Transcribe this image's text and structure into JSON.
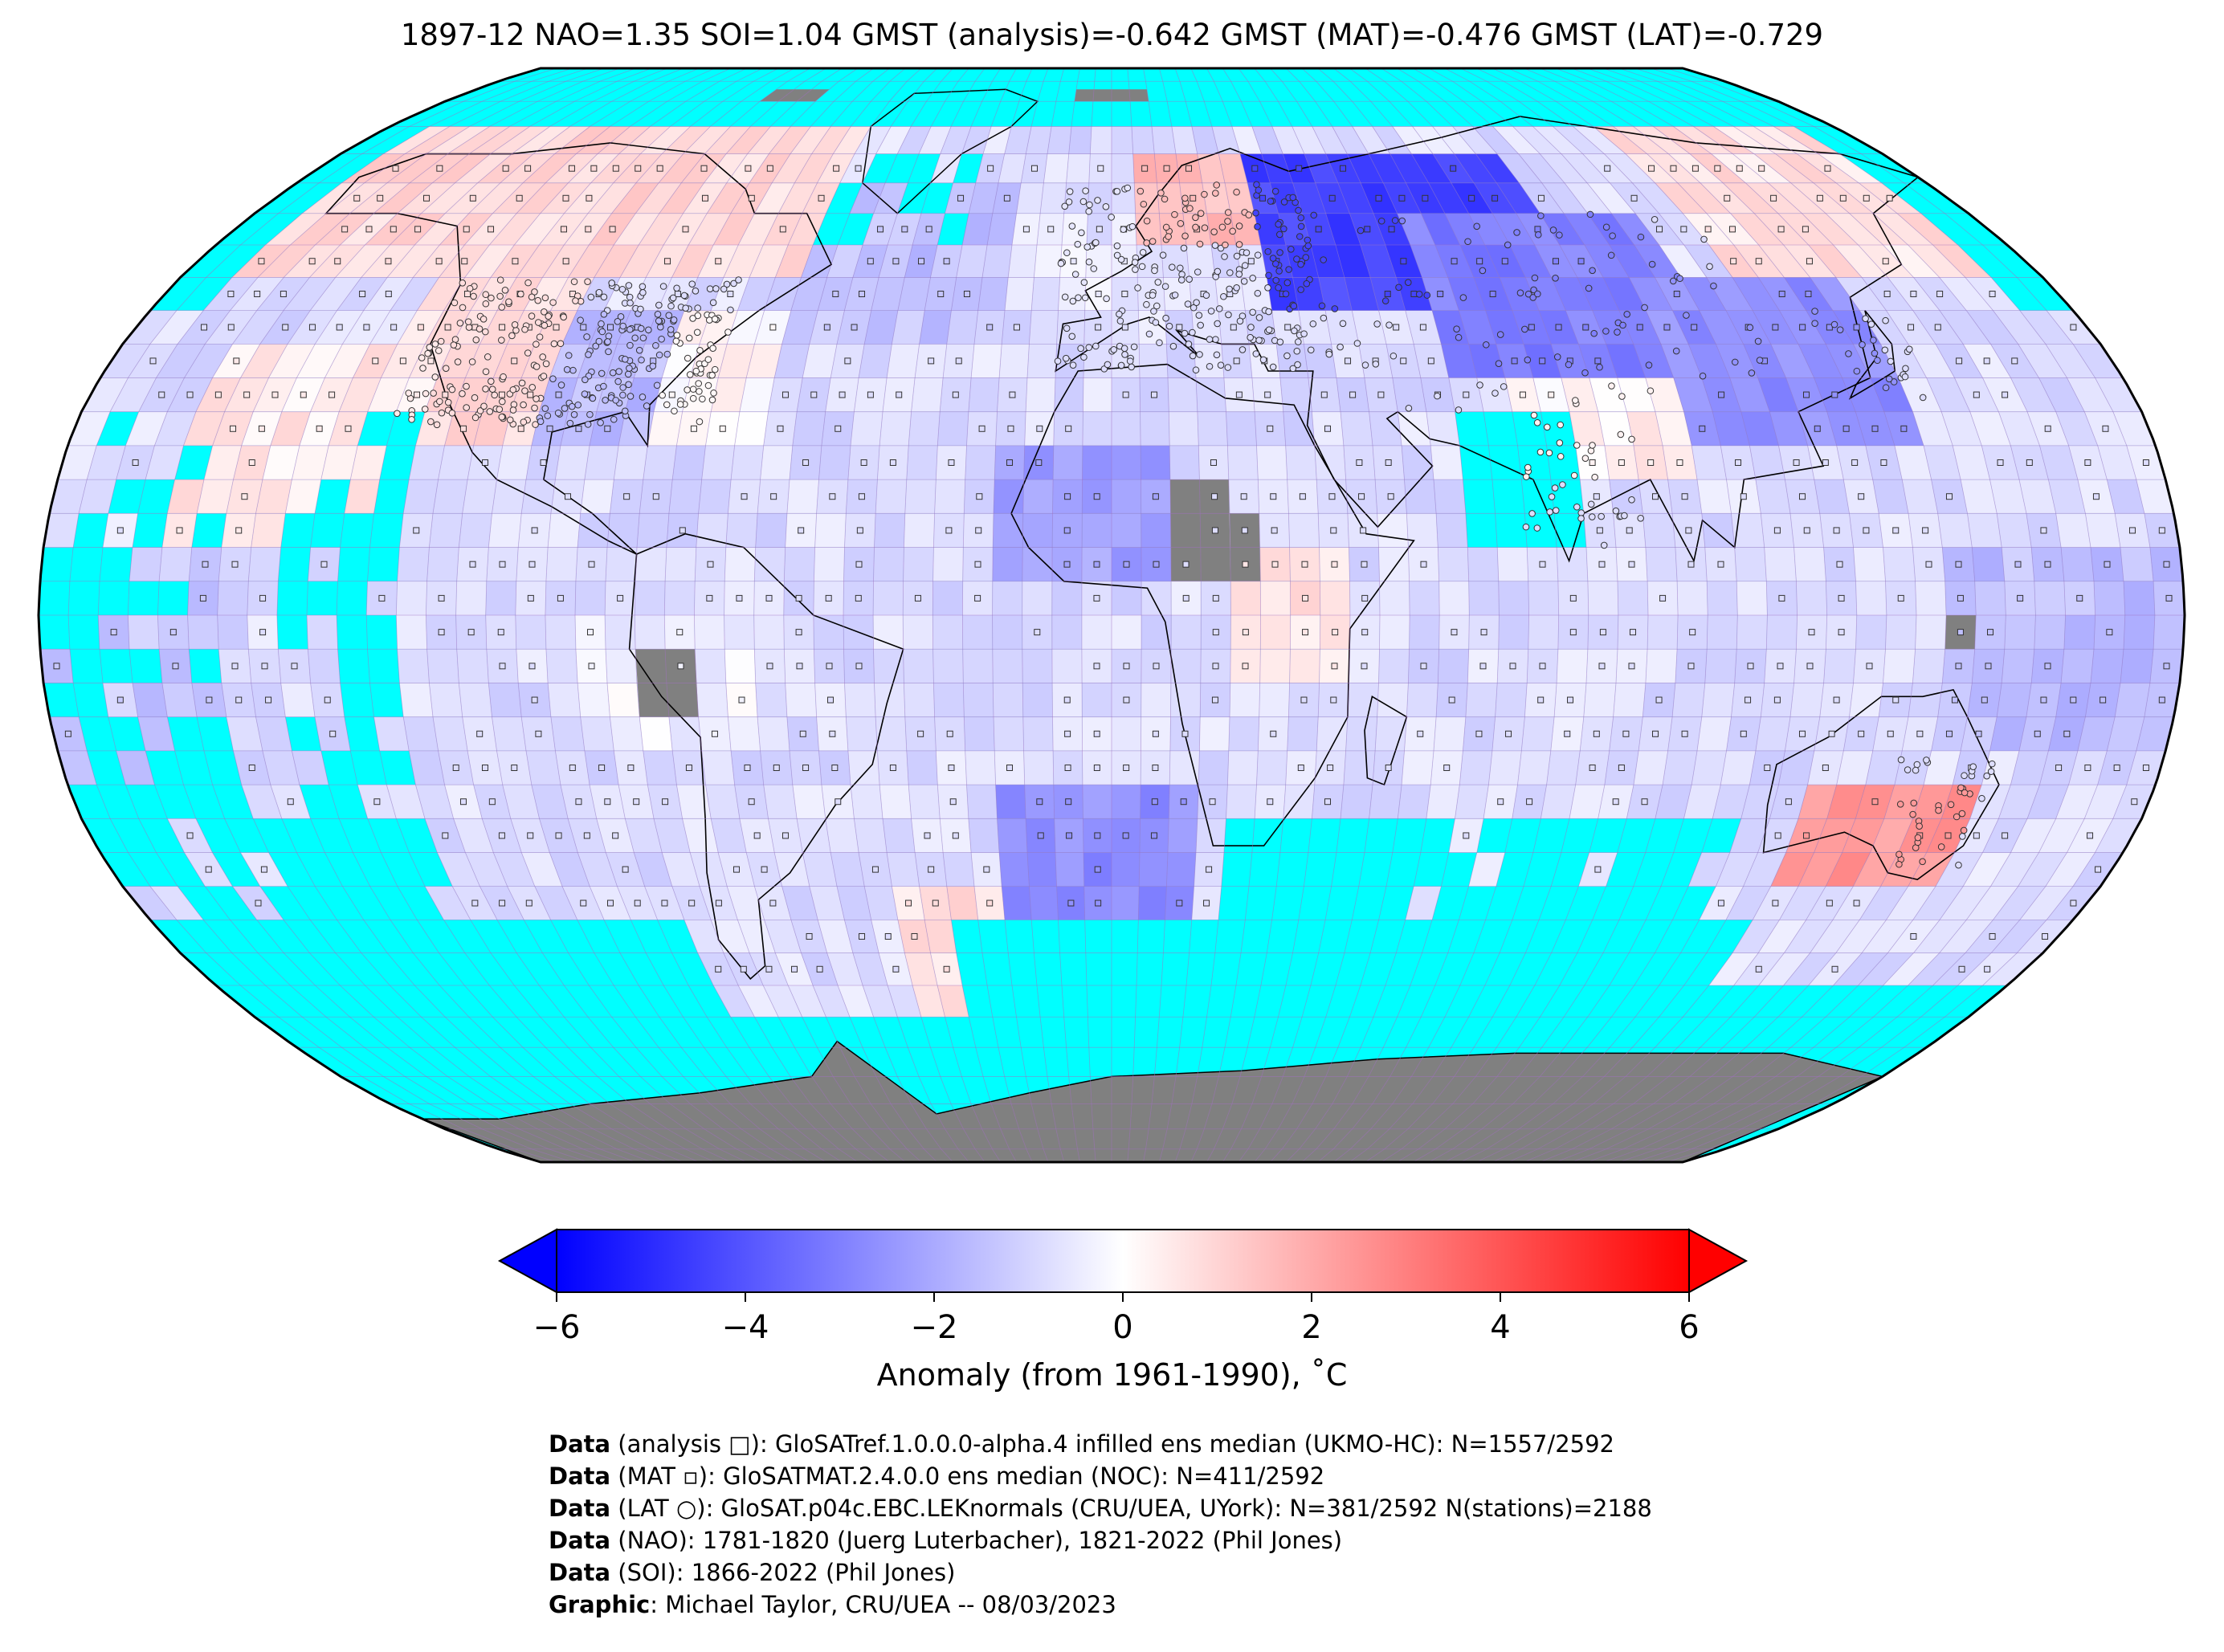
{
  "title": "1897-12 NAO=1.35 SOI=1.04 GMST (analysis)=-0.642 GMST (MAT)=-0.476 GMST (LAT)=-0.729",
  "colorbar": {
    "label": "Anomaly (from 1961-1990), ˚C",
    "ticks": [
      "−6",
      "−4",
      "−2",
      "0",
      "2",
      "4",
      "6"
    ],
    "tick_values": [
      -6,
      -4,
      -2,
      0,
      2,
      4,
      6
    ],
    "min": -6,
    "max": 6,
    "colors": {
      "cold": "#0000ff",
      "neutral": "#ffffff",
      "warm": "#ff0000"
    }
  },
  "map": {
    "projection": "Robinson",
    "missing_color": "#00ffff",
    "land_nodata_color": "#808080",
    "grid_line_color": "#a070c0"
  },
  "footer": [
    {
      "label": "Data",
      "text": " (analysis □): GloSATref.1.0.0.0-alpha.4 infilled ens median (UKMO-HC): N=1557/2592"
    },
    {
      "label": "Data",
      "text": " (MAT ▫): GloSATMAT.2.4.0.0 ens median (NOC): N=411/2592"
    },
    {
      "label": "Data",
      "text": " (LAT ○): GloSAT.p04c.EBC.LEKnormals (CRU/UEA, UYork): N=381/2592 N(stations)=2188"
    },
    {
      "label": "Data",
      "text": " (NAO): 1781-1820 (Juerg Luterbacher), 1821-2022 (Phil Jones)"
    },
    {
      "label": "Data",
      "text": " (SOI): 1866-2022 (Phil Jones)"
    },
    {
      "label": "Graphic",
      "text": ": Michael Taylor, CRU/UEA -- 08/03/2023"
    }
  ]
}
